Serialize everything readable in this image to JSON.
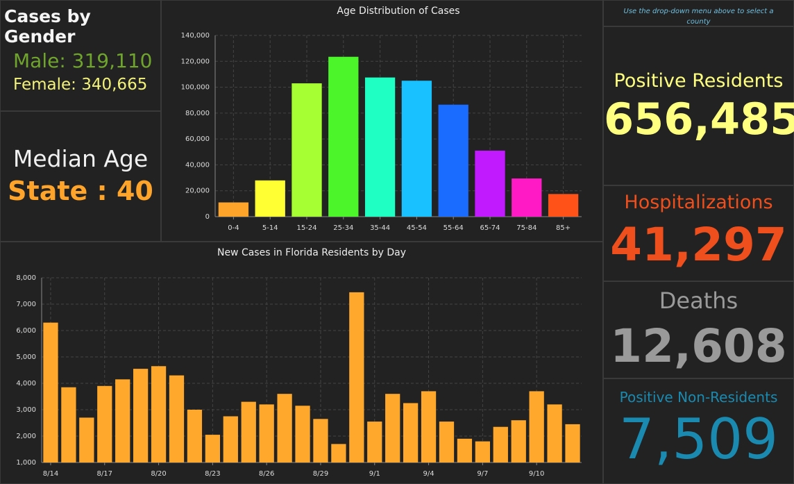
{
  "gender": {
    "title": "Cases by Gender",
    "male": "Male: 319,110",
    "female": "Female: 340,665"
  },
  "median_age": {
    "title": "Median Age",
    "value": "State : 40"
  },
  "note": "Use the drop-down menu above to select a county",
  "stats": [
    {
      "label": "Positive Residents",
      "value": "656,485"
    },
    {
      "label": "Hospitalizations",
      "value": "41,297"
    },
    {
      "label": "Deaths",
      "value": "12,608"
    },
    {
      "label": "Positive Non-Residents",
      "value": "7,509"
    }
  ],
  "chart_data": [
    {
      "type": "bar",
      "title": "Age Distribution of Cases",
      "categories": [
        "0-4",
        "5-14",
        "15-24",
        "25-34",
        "35-44",
        "45-54",
        "55-64",
        "65-74",
        "75-84",
        "85+"
      ],
      "values": [
        11000,
        28000,
        103000,
        123500,
        107500,
        105000,
        86500,
        51000,
        29500,
        17500
      ],
      "colors": [
        "#ffa42a",
        "#ffff33",
        "#a6ff33",
        "#4cf52a",
        "#1fffc3",
        "#1ac1ff",
        "#1a6bff",
        "#c21aff",
        "#ff1ac6",
        "#ff5219"
      ],
      "ylim": [
        0,
        140000
      ],
      "yticks": [
        0,
        {
          "value": 20000,
          "label": "20,000"
        },
        {
          "value": 40000,
          "label": "40,000"
        },
        {
          "value": 60000,
          "label": "60,000"
        },
        {
          "value": 80000,
          "label": "80,000"
        },
        {
          "value": 100000,
          "label": "100,000"
        },
        {
          "value": 120000,
          "label": "120,000"
        },
        {
          "value": 140000,
          "label": "140,000"
        }
      ],
      "grid": true
    },
    {
      "type": "bar",
      "title": "New Cases in Florida Residents by Day",
      "categories": [
        "8/14",
        null,
        null,
        "8/17",
        null,
        null,
        "8/20",
        null,
        null,
        "8/23",
        null,
        null,
        "8/26",
        null,
        null,
        "8/29",
        null,
        null,
        "9/1",
        null,
        null,
        "9/4",
        null,
        null,
        "9/7",
        null,
        null,
        "9/10",
        null,
        null
      ],
      "values": [
        6300,
        3850,
        2700,
        3900,
        4150,
        4550,
        4650,
        4300,
        3000,
        2050,
        2750,
        3300,
        3200,
        3600,
        3150,
        2650,
        1700,
        7450,
        2550,
        3600,
        3250,
        3700,
        2550,
        1900,
        1800,
        2350,
        2600,
        3700,
        3200,
        2450
      ],
      "color": "#ffa82b",
      "ylim": [
        1000,
        8000
      ],
      "yticks": [
        {
          "value": 1000,
          "label": "1,000"
        },
        {
          "value": 2000,
          "label": "2,000"
        },
        {
          "value": 3000,
          "label": "3,000"
        },
        {
          "value": 4000,
          "label": "4,000"
        },
        {
          "value": 5000,
          "label": "5,000"
        },
        {
          "value": 6000,
          "label": "6,000"
        },
        {
          "value": 7000,
          "label": "7,000"
        },
        {
          "value": 8000,
          "label": "8,000"
        }
      ],
      "grid": true
    }
  ]
}
